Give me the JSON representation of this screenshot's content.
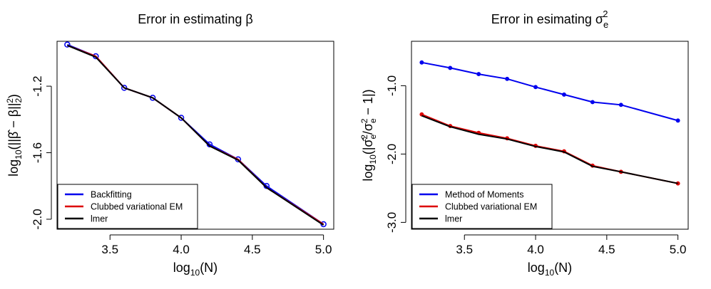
{
  "chart_data": [
    {
      "type": "line",
      "title": "Error in estimating β",
      "xlabel": "log10(N)",
      "ylabel": "log10(||β̂ − β||₂²)",
      "xlim": [
        3.2,
        5.0
      ],
      "ylim": [
        -2.06,
        -0.93
      ],
      "x_ticks": [
        3.5,
        4.0,
        4.5,
        5.0
      ],
      "x_tick_labels": [
        "3.5",
        "4.0",
        "4.5",
        "5.0"
      ],
      "y_ticks": [
        -1.2,
        -1.6,
        -2.0
      ],
      "y_tick_labels": [
        "-1.2",
        "-1.6",
        "-2.0"
      ],
      "legend": "bottom-left",
      "grid": false,
      "x": [
        3.2,
        3.4,
        3.6,
        3.8,
        4.0,
        4.2,
        4.4,
        4.6,
        5.0
      ],
      "series": [
        {
          "name": "Backfitting",
          "color": "#0000ee",
          "marker": "circle",
          "values": [
            -0.95,
            -1.02,
            -1.21,
            -1.27,
            -1.39,
            -1.55,
            -1.64,
            -1.8,
            -2.03
          ]
        },
        {
          "name": "Clubbed variational EM",
          "color": "#dd0000",
          "marker": "none",
          "values": [
            -0.955,
            -1.02,
            -1.21,
            -1.27,
            -1.39,
            -1.56,
            -1.64,
            -1.81,
            -2.03
          ]
        },
        {
          "name": "lmer",
          "color": "#000000",
          "marker": "none",
          "values": [
            -0.955,
            -1.025,
            -1.21,
            -1.27,
            -1.39,
            -1.56,
            -1.645,
            -1.81,
            -2.035
          ]
        }
      ]
    },
    {
      "type": "line",
      "title": "Error in esimating σe²",
      "xlabel": "log10(N)",
      "ylabel": "log10(|σ̂e²/σe² − 1|)",
      "xlim": [
        3.2,
        5.0
      ],
      "ylim": [
        -3.1,
        -0.35
      ],
      "x_ticks": [
        3.5,
        4.0,
        4.5,
        5.0
      ],
      "x_tick_labels": [
        "3.5",
        "4.0",
        "4.5",
        "5.0"
      ],
      "y_ticks": [
        -1.0,
        -2.0,
        -3.0
      ],
      "y_tick_labels": [
        "-1.0",
        "-2.0",
        "-3.0"
      ],
      "legend": "bottom-left",
      "grid": false,
      "x": [
        3.2,
        3.4,
        3.6,
        3.8,
        4.0,
        4.2,
        4.4,
        4.6,
        5.0
      ],
      "series": [
        {
          "name": "Method of Moments",
          "color": "#0000ee",
          "marker": "dot",
          "values": [
            -0.66,
            -0.74,
            -0.83,
            -0.9,
            -1.02,
            -1.13,
            -1.24,
            -1.28,
            -1.51
          ]
        },
        {
          "name": "Clubbed variational EM",
          "color": "#dd0000",
          "marker": "dot",
          "values": [
            -1.42,
            -1.59,
            -1.69,
            -1.77,
            -1.88,
            -1.96,
            -2.17,
            -2.26,
            -2.43
          ]
        },
        {
          "name": "lmer",
          "color": "#000000",
          "marker": "none",
          "values": [
            -1.44,
            -1.6,
            -1.71,
            -1.78,
            -1.89,
            -1.97,
            -2.18,
            -2.26,
            -2.43
          ]
        }
      ]
    }
  ]
}
